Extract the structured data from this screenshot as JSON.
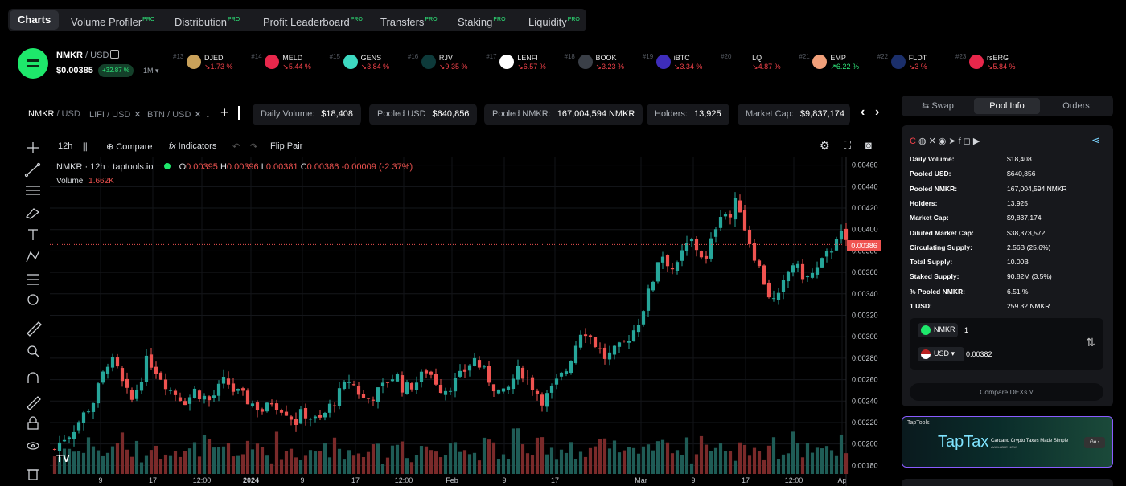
{
  "nav": {
    "items": [
      {
        "label": "Charts",
        "pro": ""
      },
      {
        "label": "Volume Profiler",
        "pro": "PRO"
      },
      {
        "label": "Distribution",
        "pro": "PRO"
      },
      {
        "label": "Profit Leaderboard",
        "pro": "PRO"
      },
      {
        "label": "Transfers",
        "pro": "PRO"
      },
      {
        "label": "Staking",
        "pro": "PRO"
      },
      {
        "label": "Liquidity",
        "pro": "PRO"
      }
    ]
  },
  "token": {
    "base": "NMKR",
    "quote": " / USD",
    "price": "$0.00385",
    "change": "+32.87 %",
    "timeframe": "1M"
  },
  "ticker": [
    {
      "rank": "#13",
      "symbol": "DJED",
      "change": "↘1.73 %",
      "dir": "down",
      "color": "#c9a15a"
    },
    {
      "rank": "#14",
      "symbol": "MELD",
      "change": "↘5.44 %",
      "dir": "down",
      "color": "#e8274b"
    },
    {
      "rank": "#15",
      "symbol": "GENS",
      "change": "↘3.84 %",
      "dir": "down",
      "color": "#3dd9c1"
    },
    {
      "rank": "#16",
      "symbol": "RJV",
      "change": "↘9.35 %",
      "dir": "down",
      "color": "#0d3a3a"
    },
    {
      "rank": "#17",
      "symbol": "LENFI",
      "change": "↘6.57 %",
      "dir": "down",
      "color": "#ffffff"
    },
    {
      "rank": "#18",
      "symbol": "BOOK",
      "change": "↘3.23 %",
      "dir": "down",
      "color": "#3a3f47"
    },
    {
      "rank": "#19",
      "symbol": "iBTC",
      "change": "↘3.34 %",
      "dir": "down",
      "color": "#3e2dbb"
    },
    {
      "rank": "#20",
      "symbol": "LQ",
      "change": "↘4.87 %",
      "dir": "down",
      "color": "#000000"
    },
    {
      "rank": "#21",
      "symbol": "EMP",
      "change": "↗6.22 %",
      "dir": "up",
      "color": "#f1a07a"
    },
    {
      "rank": "#22",
      "symbol": "FLDT",
      "change": "↘3 %",
      "dir": "down",
      "color": "#1b2f6b"
    },
    {
      "rank": "#23",
      "symbol": "rsERG",
      "change": "↘5.84 %",
      "dir": "down",
      "color": "#e8274b"
    }
  ],
  "pair_tabs": [
    {
      "base": "NMKR",
      "quote": " / USD",
      "closable": false
    },
    {
      "base": "LIFI",
      "quote": " / USD",
      "closable": true
    },
    {
      "base": "BTN",
      "quote": " / USD",
      "closable": true
    }
  ],
  "stats": [
    {
      "label": "Daily Volume:",
      "value": "$18,408"
    },
    {
      "label": "Pooled USD",
      "value": "$640,856"
    },
    {
      "label": "Pooled NMKR:",
      "value": "167,004,594 NMKR"
    },
    {
      "label": "Holders:",
      "value": "13,925"
    },
    {
      "label": "Market Cap:",
      "value": "$9,837,174"
    }
  ],
  "toolbar": {
    "interval": "12h",
    "compare": "Compare",
    "indicators": "Indicators",
    "flip": "Flip Pair"
  },
  "legend": {
    "title": "NMKR · 12h · taptools.io",
    "o_lbl": "O",
    "o": "0.00395",
    "h_lbl": "H",
    "h": "0.00396",
    "l_lbl": "L",
    "l": "0.00381",
    "c_lbl": "C",
    "c": "0.00386",
    "change": "-0.00009 (-2.37%)",
    "volume_lbl": "Volume",
    "volume": "1.662K",
    "last_price_tag": "0.00386"
  },
  "chart_data": {
    "type": "candlestick",
    "y_ticks": [
      "0.00460",
      "0.00440",
      "0.00420",
      "0.00400",
      "0.00380",
      "0.00360",
      "0.00340",
      "0.00320",
      "0.00300",
      "0.00280",
      "0.00260",
      "0.00240",
      "0.00220",
      "0.00200",
      "0.00180"
    ],
    "ylim": [
      0.00172,
      0.00468
    ],
    "x_ticks": [
      "9",
      "17",
      "12:00",
      "2024",
      "9",
      "17",
      "12:00",
      "Feb",
      "9",
      "17",
      "Mar",
      "9",
      "17",
      "12:00",
      "Ap"
    ],
    "close_path": [
      0.00195,
      0.00205,
      0.0021,
      0.0022,
      0.0023,
      0.0024,
      0.0026,
      0.0028,
      0.0027,
      0.0025,
      0.0024,
      0.0026,
      0.0028,
      0.0027,
      0.0026,
      0.0025,
      0.00245,
      0.0024,
      0.0025,
      0.00245,
      0.0024,
      0.0025,
      0.0026,
      0.0025,
      0.00245,
      0.0024,
      0.00235,
      0.0023,
      0.0024,
      0.00235,
      0.0023,
      0.0022,
      0.0023,
      0.00225,
      0.0022,
      0.0023,
      0.0024,
      0.0025,
      0.0026,
      0.0025,
      0.0024,
      0.00245,
      0.0025,
      0.0026,
      0.00265,
      0.0025,
      0.00255,
      0.0026,
      0.0027,
      0.0026,
      0.0025,
      0.00255,
      0.0026,
      0.0027,
      0.0028,
      0.0027,
      0.0026,
      0.0025,
      0.00245,
      0.0026,
      0.0027,
      0.0026,
      0.0025,
      0.0024,
      0.0025,
      0.0026,
      0.0027,
      0.0029,
      0.0031,
      0.003,
      0.0029,
      0.0028,
      0.00285,
      0.0029,
      0.003,
      0.0031,
      0.0033,
      0.0035,
      0.0038,
      0.0037,
      0.0036,
      0.0038,
      0.0039,
      0.0038,
      0.0037,
      0.004,
      0.0042,
      0.0041,
      0.0043,
      0.004,
      0.0038,
      0.0036,
      0.0034,
      0.0033,
      0.0035,
      0.0037,
      0.0036,
      0.00355,
      0.0036,
      0.0037,
      0.0038,
      0.004,
      0.00386
    ],
    "volume_path": [
      0.3,
      0.5,
      0.6,
      0.4,
      0.7,
      0.5,
      0.3,
      0.6,
      0.8,
      0.4,
      0.5,
      0.3,
      0.7,
      0.4,
      0.5,
      0.6,
      0.3,
      0.4,
      0.5,
      0.7,
      0.3,
      0.4,
      0.6,
      0.3,
      0.5,
      0.4,
      0.6,
      0.3,
      0.8,
      0.4,
      0.5,
      0.3,
      0.4,
      0.6,
      0.5,
      0.3,
      0.7,
      0.4,
      0.3,
      0.5,
      0.6,
      0.4,
      0.3,
      0.5,
      0.7,
      0.4,
      0.3,
      0.6,
      0.5,
      0.3,
      0.4,
      0.9,
      0.5,
      0.3,
      0.4,
      0.6,
      0.5,
      0.3,
      0.4,
      1.0,
      0.5,
      0.4,
      0.6,
      0.3,
      0.4,
      0.5,
      0.7,
      0.4,
      0.3,
      0.5,
      0.6,
      0.4,
      0.5,
      0.3,
      0.4,
      0.6,
      0.7,
      0.5,
      0.9,
      0.4,
      0.5,
      0.6,
      0.3,
      0.8,
      0.4,
      0.5,
      0.6,
      0.3,
      0.7,
      0.4,
      0.5,
      0.3,
      0.6,
      0.4,
      0.5,
      0.8,
      0.4,
      0.5,
      0.3,
      0.6,
      0.4,
      0.7,
      0.5
    ]
  },
  "right_tabs": [
    "Swap",
    "Pool Info",
    "Orders"
  ],
  "pool_info": [
    {
      "label": "Daily Volume:",
      "value": "$18,408"
    },
    {
      "label": "Pooled USD:",
      "value": "$640,856"
    },
    {
      "label": "Pooled NMKR:",
      "value": "167,004,594 NMKR"
    },
    {
      "label": "Holders:",
      "value": "13,925"
    },
    {
      "label": "Market Cap:",
      "value": "$9,837,174"
    },
    {
      "label": "Diluted Market Cap:",
      "value": "$38,373,572"
    },
    {
      "label": "Circulating Supply:",
      "value": "2.56B (25.6%)"
    },
    {
      "label": "Total Supply:",
      "value": "10.00B"
    },
    {
      "label": "Staked Supply:",
      "value": "90.82M (3.5%)"
    },
    {
      "label": "% Pooled NMKR:",
      "value": "6.51 %"
    },
    {
      "label": "1 USD:",
      "value": "259.32 NMKR"
    }
  ],
  "converter": {
    "token": "NMKR",
    "token_amount": "1",
    "fiat": "USD",
    "fiat_amount": "0.00382"
  },
  "compare_dexs": "Compare DEXs",
  "banner": {
    "brand": "TapTools",
    "title": "TapTax",
    "subtitle": "Cardano Crypto Taxes Made Simple",
    "small": "AVAILABLE NOW",
    "cta": "Go"
  },
  "colors": {
    "up": "#26a69a",
    "down": "#ef5350",
    "accent": "#1ee86b"
  }
}
